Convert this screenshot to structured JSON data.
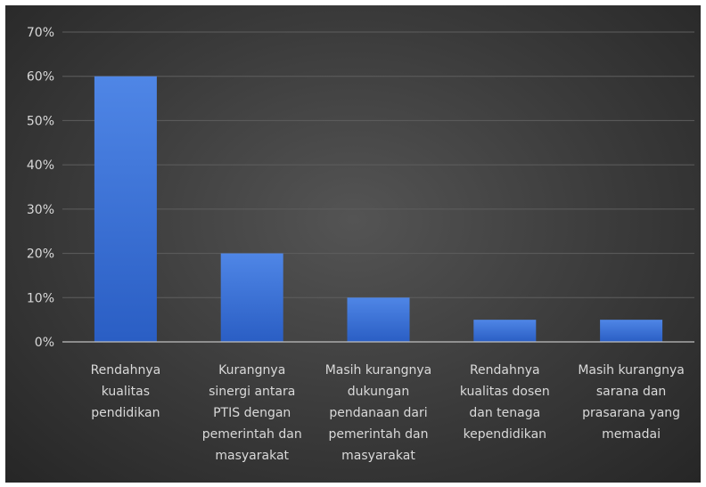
{
  "chart_data": {
    "type": "bar",
    "categories": [
      "Rendahnya kualitas pendidikan",
      "Kurangnya sinergi antara PTIS dengan pemerintah dan masyarakat",
      "Masih kurangnya dukungan pendanaan dari pemerintah dan masyarakat",
      "Rendahnya kualitas dosen dan tenaga kependidikan",
      "Masih kurangnya sarana dan prasarana yang memadai"
    ],
    "category_lines": [
      [
        "Rendahnya",
        "kualitas",
        "pendidikan"
      ],
      [
        "Kurangnya",
        "sinergi antara",
        "PTIS dengan",
        "pemerintah dan",
        "masyarakat"
      ],
      [
        "Masih kurangnya",
        "dukungan",
        "pendanaan dari",
        "pemerintah dan",
        "masyarakat"
      ],
      [
        "Rendahnya",
        "kualitas dosen",
        "dan tenaga",
        "kependidikan"
      ],
      [
        "Masih kurangnya",
        "sarana dan",
        "prasarana yang",
        "memadai"
      ]
    ],
    "values": [
      60,
      20,
      10,
      5,
      5
    ],
    "ylim": [
      0,
      70
    ],
    "yticks": [
      0,
      10,
      20,
      30,
      40,
      50,
      60,
      70
    ],
    "ytick_labels": [
      "0%",
      "10%",
      "20%",
      "30%",
      "40%",
      "50%",
      "60%",
      "70%"
    ],
    "grid": true,
    "colors": {
      "bar_top": "#4f86e6",
      "bar_bottom": "#2a5ec4",
      "grid": "#5e5e5e",
      "axis": "#bfbfbf",
      "text": "#d9d9d9"
    }
  }
}
